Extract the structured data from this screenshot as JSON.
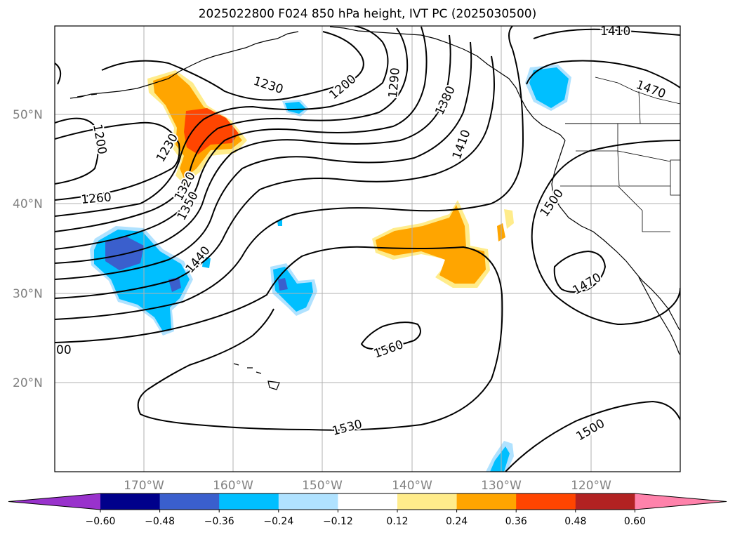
{
  "title": "2025022800 F024 850 hPa height, IVT PC (2025030500)",
  "lat_labels": [
    "50°N",
    "40°N",
    "30°N",
    "20°N"
  ],
  "lon_labels": [
    "170°W",
    "160°W",
    "150°W",
    "140°W",
    "130°W",
    "120°W"
  ],
  "contour_labels": [
    "1410",
    "1470",
    "1230",
    "1200",
    "1290",
    "1380",
    "1200",
    "1230",
    "1410",
    "1320",
    "1350",
    "1260",
    "1440",
    "1500",
    "1470",
    "1560",
    "1530",
    "1500",
    "00"
  ],
  "colorbar": {
    "ticks": [
      "−0.60",
      "−0.48",
      "−0.36",
      "−0.24",
      "−0.12",
      "0.12",
      "0.24",
      "0.36",
      "0.48",
      "0.60"
    ],
    "colors": [
      "#9932CC",
      "#00008B",
      "#3A5FCD",
      "#00BFFF",
      "#B0E2FF",
      "#FFFFFF",
      "#FFEC8B",
      "#FFA500",
      "#FF4500",
      "#B22222",
      "#FF82AB"
    ]
  }
}
